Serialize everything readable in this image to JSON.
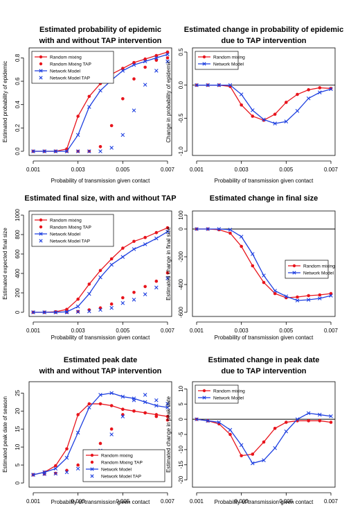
{
  "colors": {
    "red": "#e8141c",
    "blue": "#1d3fe0",
    "axis": "#000000"
  },
  "chart_data": [
    {
      "type": "line",
      "title": [
        "Estimated probability of epidemic",
        "with and without TAP intervention"
      ],
      "xlabel": "Probability of transmission given contact",
      "ylabel": "Estimated probability of epidemic",
      "xlim": [
        0.001,
        0.007
      ],
      "ylim": [
        0,
        0.85
      ],
      "xticks": [
        0.001,
        0.003,
        0.005,
        0.007
      ],
      "xtick_labels": [
        "0.001",
        "0.003",
        "0.005",
        "0.007"
      ],
      "yticks": [
        0.0,
        0.2,
        0.4,
        0.6,
        0.8
      ],
      "ytick_labels": [
        "0.0",
        "0.2",
        "0.4",
        "0.6",
        "0.8"
      ],
      "zero_line": false,
      "legend": {
        "position": "top-left"
      },
      "x": [
        0.001,
        0.0015,
        0.002,
        0.0025,
        0.003,
        0.0035,
        0.004,
        0.0045,
        0.005,
        0.0055,
        0.006,
        0.0065,
        0.007
      ],
      "series": [
        {
          "name": "Random mixing",
          "color": "red",
          "marker": "dot",
          "line": true,
          "values": [
            0,
            0,
            0,
            0.02,
            0.3,
            0.47,
            0.58,
            0.66,
            0.71,
            0.76,
            0.79,
            0.82,
            0.85
          ]
        },
        {
          "name": "Random Mixing TAP",
          "color": "red",
          "marker": "dot",
          "line": false,
          "values": [
            0,
            0,
            0,
            0,
            0,
            0,
            0.04,
            0.22,
            0.45,
            0.62,
            0.72,
            0.78,
            0.8
          ]
        },
        {
          "name": "Network Model",
          "color": "blue",
          "marker": "x",
          "line": true,
          "values": [
            0,
            0,
            0,
            0,
            0.14,
            0.38,
            0.52,
            0.61,
            0.69,
            0.74,
            0.77,
            0.8,
            0.83
          ]
        },
        {
          "name": "Network Model TAP",
          "color": "blue",
          "marker": "x",
          "line": false,
          "values": [
            0,
            0,
            0,
            0,
            0,
            0,
            0,
            0.03,
            0.14,
            0.35,
            0.57,
            0.69,
            0.77
          ]
        }
      ]
    },
    {
      "type": "line",
      "title": [
        "Estimated change in probability of epidemic",
        "due to TAP intervention"
      ],
      "xlabel": "Probability of transmission given contact",
      "ylabel": "Change in probability of epidemic",
      "xlim": [
        0.001,
        0.007
      ],
      "ylim": [
        -1.0,
        0.5
      ],
      "xticks": [
        0.001,
        0.003,
        0.005,
        0.007
      ],
      "xtick_labels": [
        "0.001",
        "0.003",
        "0.005",
        "0.007"
      ],
      "yticks": [
        -1.0,
        -0.5,
        0.0,
        0.5
      ],
      "ytick_labels": [
        "-1.0",
        "-0.5",
        "0.0",
        "0.5"
      ],
      "zero_line": true,
      "legend": {
        "position": "top-left"
      },
      "x": [
        0.001,
        0.0015,
        0.002,
        0.0025,
        0.003,
        0.0035,
        0.004,
        0.0045,
        0.005,
        0.0055,
        0.006,
        0.0065,
        0.007
      ],
      "series": [
        {
          "name": "Random mixing",
          "color": "red",
          "marker": "dot",
          "line": true,
          "values": [
            0,
            0,
            0,
            -0.02,
            -0.3,
            -0.47,
            -0.53,
            -0.44,
            -0.26,
            -0.14,
            -0.07,
            -0.04,
            -0.05
          ]
        },
        {
          "name": "Network Model",
          "color": "blue",
          "marker": "x",
          "line": true,
          "values": [
            0,
            0,
            0,
            0,
            -0.14,
            -0.38,
            -0.52,
            -0.58,
            -0.55,
            -0.39,
            -0.2,
            -0.11,
            -0.06
          ]
        }
      ]
    },
    {
      "type": "line",
      "title": [
        "Estimated final size, with and without TAP"
      ],
      "xlabel": "Probability of transmission given contact",
      "ylabel": "Estimated expected final size",
      "xlim": [
        0.001,
        0.007
      ],
      "ylim": [
        0,
        1000
      ],
      "xticks": [
        0.001,
        0.003,
        0.005,
        0.007
      ],
      "xtick_labels": [
        "0.001",
        "0.003",
        "0.005",
        "0.007"
      ],
      "yticks": [
        0,
        200,
        400,
        600,
        800,
        1000
      ],
      "ytick_labels": [
        "0",
        "200",
        "400",
        "600",
        "800",
        "1000"
      ],
      "zero_line": false,
      "legend": {
        "position": "top-left"
      },
      "x": [
        0.001,
        0.0015,
        0.002,
        0.0025,
        0.003,
        0.0035,
        0.004,
        0.0045,
        0.005,
        0.0055,
        0.006,
        0.0065,
        0.007
      ],
      "series": [
        {
          "name": "Random mixing",
          "color": "red",
          "marker": "dot",
          "line": true,
          "values": [
            0,
            0,
            5,
            30,
            135,
            290,
            430,
            550,
            660,
            730,
            770,
            820,
            870
          ]
        },
        {
          "name": "Random Mixing TAP",
          "color": "red",
          "marker": "dot",
          "line": false,
          "values": [
            0,
            0,
            0,
            0,
            8,
            25,
            45,
            85,
            150,
            205,
            265,
            320,
            405
          ]
        },
        {
          "name": "Network Model",
          "color": "blue",
          "marker": "x",
          "line": true,
          "values": [
            0,
            0,
            0,
            5,
            60,
            190,
            360,
            490,
            570,
            650,
            700,
            760,
            830
          ]
        },
        {
          "name": "Network Model TAP",
          "color": "blue",
          "marker": "x",
          "line": false,
          "values": [
            0,
            0,
            0,
            0,
            5,
            10,
            25,
            45,
            95,
            130,
            185,
            255,
            350
          ]
        }
      ]
    },
    {
      "type": "line",
      "title": [
        "Estimated change in final size",
        "due to TAP intervention"
      ],
      "xlabel": "Probability of transmission given contact",
      "ylabel": "Estimated change in final size",
      "xlim": [
        0.001,
        0.007
      ],
      "ylim": [
        -600,
        100
      ],
      "xticks": [
        0.001,
        0.003,
        0.005,
        0.007
      ],
      "xtick_labels": [
        "0.001",
        "0.003",
        "0.005",
        "0.007"
      ],
      "yticks": [
        -600,
        -400,
        -200,
        0,
        100
      ],
      "ytick_labels": [
        "-600",
        "-400",
        "-200",
        "0",
        "100"
      ],
      "zero_line": true,
      "legend": {
        "position": "center-right"
      },
      "x": [
        0.001,
        0.0015,
        0.002,
        0.0025,
        0.003,
        0.0035,
        0.004,
        0.0045,
        0.005,
        0.0055,
        0.006,
        0.0065,
        0.007
      ],
      "series": [
        {
          "name": "Random mixing",
          "color": "red",
          "marker": "dot",
          "line": true,
          "values": [
            0,
            0,
            -5,
            -30,
            -125,
            -265,
            -385,
            -465,
            -495,
            -490,
            -480,
            -475,
            -465
          ]
        },
        {
          "name": "Network Model",
          "color": "blue",
          "marker": "x",
          "line": true,
          "values": [
            0,
            0,
            0,
            -5,
            -55,
            -180,
            -335,
            -445,
            -485,
            -515,
            -510,
            -500,
            -480
          ]
        }
      ]
    },
    {
      "type": "line",
      "title": [
        "Estimated peak date",
        "with and without TAP intervention"
      ],
      "xlabel": "Probability of transmission given contact",
      "ylabel": "Estimated peak date of season",
      "xlim": [
        0.001,
        0.007
      ],
      "ylim": [
        0,
        27
      ],
      "xticks": [
        0.001,
        0.003,
        0.005,
        0.007
      ],
      "xtick_labels": [
        "0.001",
        "0.003",
        "0.005",
        "0.007"
      ],
      "yticks": [
        0,
        5,
        10,
        15,
        20,
        25
      ],
      "ytick_labels": [
        "0",
        "5",
        "10",
        "15",
        "20",
        "25"
      ],
      "zero_line": false,
      "legend": {
        "position": "bottom-right"
      },
      "x": [
        0.001,
        0.0015,
        0.002,
        0.0025,
        0.003,
        0.0035,
        0.004,
        0.0045,
        0.005,
        0.0055,
        0.006,
        0.0065,
        0.007
      ],
      "series": [
        {
          "name": "Random mixing",
          "color": "red",
          "marker": "dot",
          "line": true,
          "values": [
            2.3,
            3.0,
            4.8,
            9.5,
            19.0,
            22.0,
            22.0,
            21.5,
            20.5,
            20.0,
            19.5,
            19.0,
            18.5
          ]
        },
        {
          "name": "Random Mixing TAP",
          "color": "red",
          "marker": "dot",
          "line": false,
          "values": [
            2.3,
            2.5,
            2.7,
            3.5,
            5.0,
            8.5,
            11.0,
            15.0,
            19.0,
            20.0,
            19.5,
            18.5,
            17.5
          ]
        },
        {
          "name": "Network Model",
          "color": "blue",
          "marker": "x",
          "line": true,
          "values": [
            2.3,
            3.0,
            4.0,
            7.0,
            14.0,
            21.0,
            24.5,
            25.0,
            24.0,
            23.5,
            22.5,
            21.5,
            21.0
          ]
        },
        {
          "name": "Network Model TAP",
          "color": "blue",
          "marker": "x",
          "line": false,
          "values": [
            2.3,
            2.5,
            2.6,
            3.0,
            4.0,
            6.0,
            9.0,
            13.5,
            18.5,
            23.0,
            24.5,
            23.0,
            22.0
          ]
        }
      ]
    },
    {
      "type": "line",
      "title": [
        "Estimated change in peak date",
        "due to TAP intervention"
      ],
      "xlabel": "Probability of transmission given contact",
      "ylabel": "Estimated change in peak date",
      "xlim": [
        0.001,
        0.007
      ],
      "ylim": [
        -21,
        11
      ],
      "xticks": [
        0.001,
        0.003,
        0.005,
        0.007
      ],
      "xtick_labels": [
        "0.001",
        "0.003",
        "0.005",
        "0.007"
      ],
      "yticks": [
        -20,
        -15,
        -10,
        -5,
        0,
        5,
        10
      ],
      "ytick_labels": [
        "-20",
        "-15",
        "-10",
        "-5",
        "0",
        "5",
        "10"
      ],
      "zero_line": true,
      "legend": {
        "position": "top-left"
      },
      "x": [
        0.001,
        0.0015,
        0.002,
        0.0025,
        0.003,
        0.0035,
        0.004,
        0.0045,
        0.005,
        0.0055,
        0.006,
        0.0065,
        0.007
      ],
      "series": [
        {
          "name": "Random mixing",
          "color": "red",
          "marker": "dot",
          "line": true,
          "values": [
            0,
            -0.5,
            -1.5,
            -5.0,
            -12.0,
            -11.5,
            -7.5,
            -3.0,
            -1.0,
            -0.5,
            -0.5,
            -0.5,
            -1.0
          ]
        },
        {
          "name": "Network Model",
          "color": "blue",
          "marker": "x",
          "line": true,
          "values": [
            0,
            -0.5,
            -1.0,
            -3.5,
            -8.5,
            -14.5,
            -13.5,
            -9.5,
            -4.0,
            0,
            2.0,
            1.5,
            1.0
          ]
        }
      ]
    }
  ]
}
